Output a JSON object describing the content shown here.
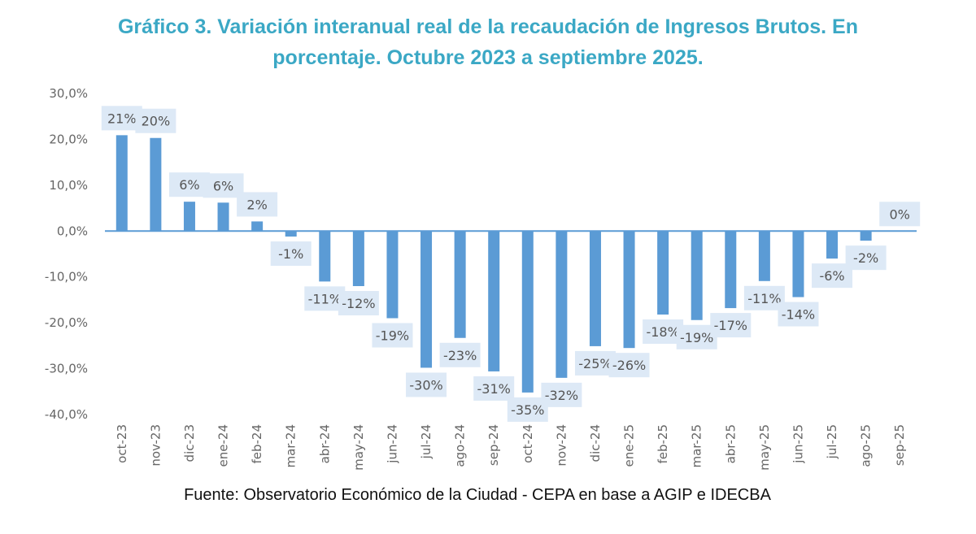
{
  "chart_data": {
    "type": "bar",
    "title": "Gráfico 3. Variación interanual real de la recaudación de Ingresos Brutos. En porcentaje. Octubre 2023 a septiembre 2025.",
    "title_lines": [
      "Gráfico 3. Variación interanual real de la recaudación de Ingresos Brutos. En",
      "porcentaje. Octubre 2023 a septiembre 2025."
    ],
    "xlabel": "",
    "ylabel": "",
    "ylim": [
      -40,
      30
    ],
    "yticks": [
      30,
      20,
      10,
      0,
      -10,
      -20,
      -30,
      -40
    ],
    "ytick_labels": [
      "30,0%",
      "20,0%",
      "10,0%",
      "0,0%",
      "-10,0%",
      "-20,0%",
      "-30,0%",
      "-40,0%"
    ],
    "grid": false,
    "legend": "none",
    "bar_color": "#5b9bd5",
    "label_bg_color": "#dde9f6",
    "categories": [
      "oct-23",
      "nov-23",
      "dic-23",
      "ene-24",
      "feb-24",
      "mar-24",
      "abr-24",
      "may-24",
      "jun-24",
      "jul-24",
      "ago-24",
      "sep-24",
      "oct-24",
      "nov-24",
      "dic-24",
      "ene-25",
      "feb-25",
      "mar-25",
      "abr-25",
      "may-25",
      "jun-25",
      "jul-25",
      "ago-25",
      "sep-25"
    ],
    "values": [
      20.9,
      20.3,
      6.4,
      6.2,
      2.1,
      -1.2,
      -11.0,
      -12.0,
      -19.0,
      -29.8,
      -23.3,
      -30.6,
      -35.2,
      -32.0,
      -25.1,
      -25.5,
      -18.2,
      -19.4,
      -16.8,
      -10.9,
      -14.4,
      -6.0,
      -2.1,
      0.0
    ],
    "data_labels": [
      "21%",
      "20%",
      "6%",
      "6%",
      "2%",
      "-1%",
      "-11%",
      "-12%",
      "-19%",
      "-30%",
      "-23%",
      "-31%",
      "-35%",
      "-32%",
      "-25%",
      "-26%",
      "-18%",
      "-19%",
      "-17%",
      "-11%",
      "-14%",
      "-6%",
      "-2%",
      "0%"
    ]
  },
  "source": "Fuente: Observatorio Económico de la Ciudad - CEPA en base a AGIP e IDECBA"
}
